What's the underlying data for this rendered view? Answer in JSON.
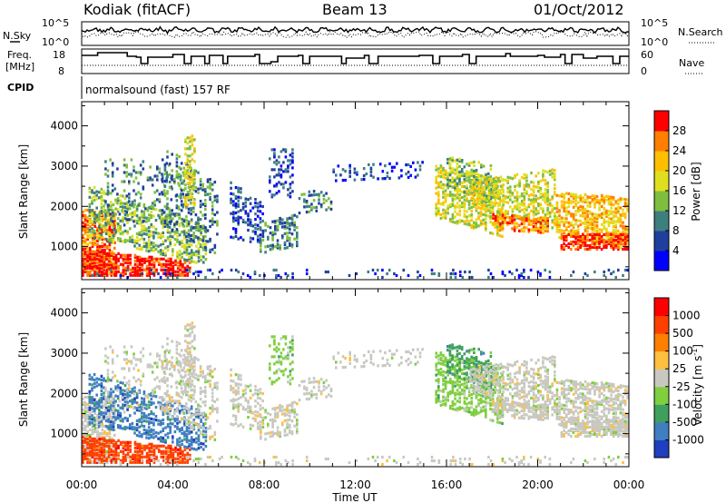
{
  "header": {
    "station": "Kodiak (fitACF)",
    "beam": "Beam 13",
    "date": "01/Oct/2012"
  },
  "noise_panel": {
    "left_label": "N.Sky",
    "right_label": "N.Search",
    "y_ticks": [
      "10^5",
      "10^0"
    ]
  },
  "freq_panel": {
    "left_label_1": "Freq.",
    "left_label_2": "[MHz]",
    "right_label": "Nave",
    "left_ticks": [
      "18",
      "8"
    ],
    "right_ticks": [
      "60",
      "0"
    ]
  },
  "cpid_panel": {
    "label": "CPID",
    "mode": "normalsound (fast) 157 RF"
  },
  "chart_data": [
    {
      "type": "heatmap",
      "panel": "power",
      "ylabel": "Slant Range [km]",
      "ylim": [
        180,
        4600
      ],
      "y_ticks": [
        1000,
        2000,
        3000,
        4000
      ],
      "x_ticks": [
        "00:00",
        "04:00",
        "08:00",
        "12:00",
        "16:00",
        "20:00",
        "00:00"
      ],
      "xlim_hours": [
        0,
        24
      ],
      "colorbar": {
        "label": "Power [dB]",
        "ticks": [
          "4",
          "8",
          "12",
          "16",
          "20",
          "24",
          "28"
        ],
        "colors": [
          "#0000ff",
          "#1f3f9f",
          "#3d7f7f",
          "#7fbf3f",
          "#dfdf1f",
          "#ffbf00",
          "#ff7f00",
          "#ff0000"
        ]
      }
    },
    {
      "type": "heatmap",
      "panel": "velocity",
      "ylabel": "Slant Range [km]",
      "ylim": [
        180,
        4600
      ],
      "y_ticks": [
        1000,
        2000,
        3000,
        4000
      ],
      "x_ticks": [
        "00:00",
        "04:00",
        "08:00",
        "12:00",
        "16:00",
        "20:00",
        "00:00"
      ],
      "xlabel": "Time UT",
      "xlim_hours": [
        0,
        24
      ],
      "colorbar": {
        "label": "Velocity [m s",
        "label_sup": "-1",
        "label_end": "]",
        "ticks": [
          "1000",
          "500",
          "100",
          "25",
          "-25",
          "-100",
          "-500",
          "-1000"
        ],
        "colors": [
          "#1f3fbf",
          "#3f7fbf",
          "#3f9f5f",
          "#7fcf3f",
          "#c8c8c0",
          "#ffbf3f",
          "#ff7f00",
          "#ff3f00",
          "#ff0000"
        ]
      }
    }
  ]
}
